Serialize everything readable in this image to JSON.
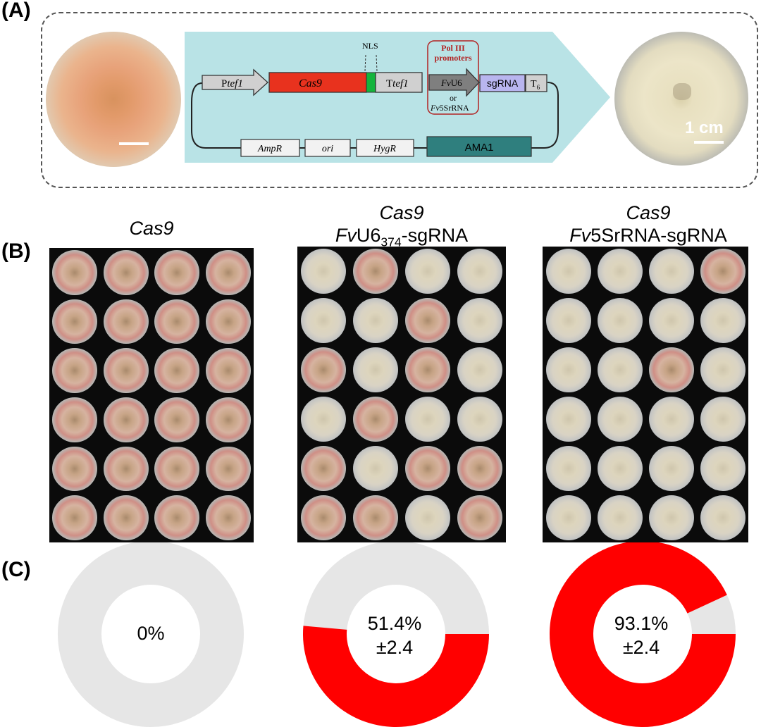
{
  "panels": {
    "a": "(A)",
    "b": "(B)",
    "c": "(C)"
  },
  "construct": {
    "ptef1": [
      "P",
      "tef1"
    ],
    "cas9": "Cas9",
    "nls": "NLS",
    "ttef1": [
      "T",
      "tef1"
    ],
    "pol3": "Pol III promoters",
    "fvu6": [
      "Fv",
      "U6"
    ],
    "or": "or",
    "fv5s": [
      "Fv",
      "5SrRNA"
    ],
    "sgrna": "sgRNA",
    "t6": [
      "T",
      "6"
    ],
    "ampr": "AmpR",
    "ori": "ori",
    "hygr": "HygR",
    "ama1": "AMA1"
  },
  "scalebar_label": "1 cm",
  "columns": [
    {
      "line1": "Cas9",
      "line2_italic": "",
      "line2_main": "",
      "line2_sub": "",
      "line2_rest": ""
    },
    {
      "line1": "Cas9",
      "line2_italic": "Fv",
      "line2_main": "U6",
      "line2_sub": "374",
      "line2_rest": "-sgRNA"
    },
    {
      "line1": "Cas9",
      "line2_italic": "Fv",
      "line2_main": "5SrRNA-sgRNA",
      "line2_sub": "",
      "line2_rest": ""
    }
  ],
  "donuts": [
    {
      "value_label": "0%",
      "sd_label": "",
      "fraction": 0.0
    },
    {
      "value_label": "51.4%",
      "sd_label": "±2.4",
      "fraction": 0.514
    },
    {
      "value_label": "93.1%",
      "sd_label": "±2.4",
      "fraction": 0.931
    }
  ],
  "colors": {
    "edited": "#ff0000",
    "unedited": "#e6e6e6",
    "cas9": "#e8321e",
    "nls": "#14b43c",
    "u6": "#7f7f7f",
    "sgrna": "#b9b5ef",
    "ama1": "#2f7f7e",
    "diagram_bg": "#b9e3e6",
    "pol3_red": "#b22222"
  },
  "plates": {
    "rows": 6,
    "cols": 4,
    "cas9_red": [
      1,
      1,
      1,
      1,
      1,
      1,
      1,
      1,
      1,
      1,
      1,
      1,
      1,
      1,
      1,
      1,
      1,
      1,
      1,
      1,
      1,
      1,
      1,
      1
    ],
    "u6_red": [
      0,
      1,
      0,
      0,
      0,
      0,
      1,
      0,
      1,
      0,
      1,
      0,
      0,
      1,
      0,
      0,
      1,
      0,
      1,
      1,
      1,
      1,
      0,
      1
    ],
    "s5_red": [
      0,
      0,
      0,
      1,
      0,
      0,
      0,
      0,
      0,
      0,
      1,
      0,
      0,
      0,
      0,
      0,
      0,
      0,
      0,
      0,
      0,
      0,
      0,
      0
    ]
  }
}
